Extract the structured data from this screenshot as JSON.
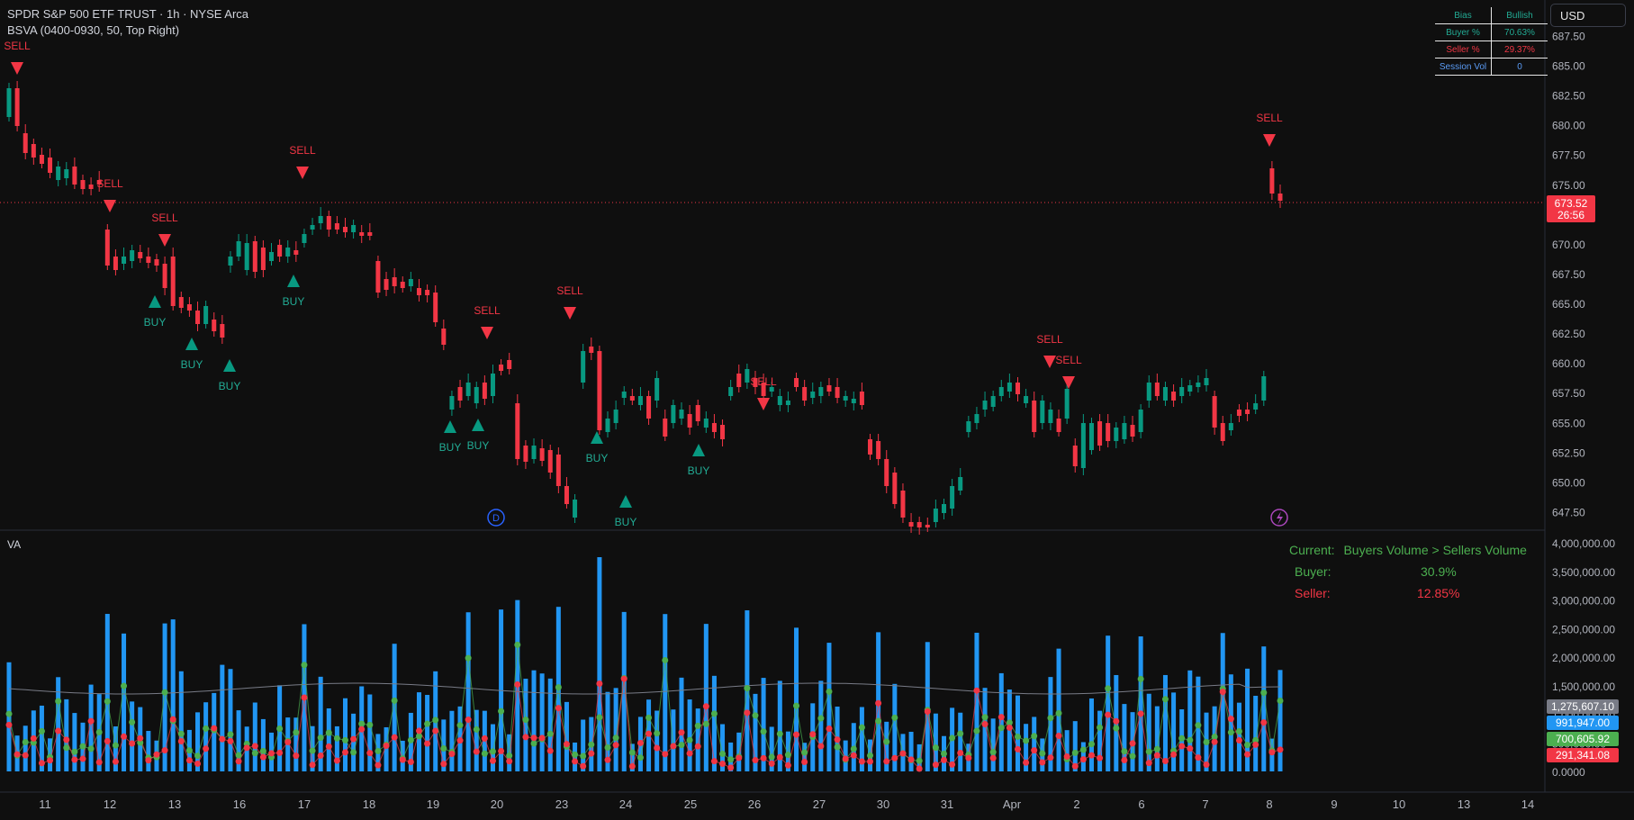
{
  "header": {
    "title": "SPDR S&P 500 ETF TRUST · 1h · NYSE Arca",
    "indicator": "BSVA (0400-0930, 50, Top Right)"
  },
  "currency": "USD",
  "info_table": {
    "rows": [
      {
        "label": "Bias",
        "value": "Bullish",
        "label_color": "#22ab94",
        "value_color": "#22ab94"
      },
      {
        "label": "Buyer %",
        "value": "70.63%",
        "label_color": "#22ab94",
        "value_color": "#22ab94"
      },
      {
        "label": "Seller %",
        "value": "29.37%",
        "label_color": "#f23645",
        "value_color": "#f23645"
      },
      {
        "label": "Session Vol",
        "value": "0",
        "label_color": "#5b9cf6",
        "value_color": "#5b9cf6"
      }
    ]
  },
  "price_axis": {
    "ticks": [
      "687.50",
      "685.00",
      "682.50",
      "680.00",
      "677.50",
      "675.00",
      "672.50",
      "670.00",
      "667.50",
      "665.00",
      "662.50",
      "660.00",
      "657.50",
      "655.00",
      "652.50",
      "650.00",
      "647.50"
    ],
    "current_price": "673.52",
    "countdown": "26:56"
  },
  "volume_axis": {
    "ticks": [
      "4,000,000.00",
      "3,500,000.00",
      "3,000,000.00",
      "2,500,000.00",
      "2,000,000.00",
      "1,500,000.00",
      "1,000,000.00",
      "500,000.00",
      "0.0000"
    ],
    "badges": [
      {
        "value": "1,275,607.10",
        "color": "#787b86"
      },
      {
        "value": "991,947.00",
        "color": "#2196f3"
      },
      {
        "value": "700,605.92",
        "color": "#4caf50"
      },
      {
        "value": "291,341.08",
        "color": "#f23645"
      }
    ]
  },
  "volume_pane": {
    "label": "VA",
    "current_label": "Current:",
    "current_value": "Buyers Volume > Sellers Volume",
    "buyer_label": "Buyer:",
    "buyer_value": "30.9%",
    "seller_label": "Seller:",
    "seller_value": "12.85%"
  },
  "time_axis": {
    "labels": [
      "11",
      "12",
      "13",
      "16",
      "17",
      "18",
      "19",
      "20",
      "23",
      "24",
      "25",
      "26",
      "27",
      "30",
      "31",
      "Apr",
      "2",
      "6",
      "7",
      "8",
      "9",
      "10",
      "13",
      "14"
    ]
  },
  "markers": {
    "buy": "BUY",
    "sell": "SELL",
    "dividend": "D"
  },
  "colors": {
    "up": "#089981",
    "down": "#f23645",
    "volume": "#2196f3",
    "buyer_dot": "#4caf50",
    "seller_dot": "#f23645",
    "ma_line": "#787b86",
    "buy_text": "#22ab94",
    "sell_text": "#f23645"
  }
}
